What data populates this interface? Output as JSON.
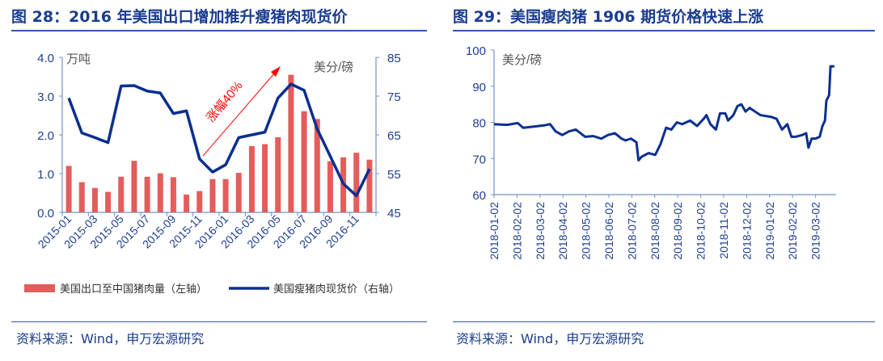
{
  "left": {
    "title": "图 28：2016 年美国出口增加推升瘦猪肉现货价",
    "source": "资料来源：Wind，申万宏源研究"
  },
  "right": {
    "title": "图 29：美国瘦肉猪 1906 期货价格快速上涨",
    "source": "资料来源：Wind，申万宏源研究"
  },
  "colors": {
    "bar": "#e35d5b",
    "line": "#0a2f8f",
    "axis": "#6f93c9",
    "tick_text": "#1f3f8f",
    "arrow": "#ff0000"
  },
  "chart_data": [
    {
      "type": "bar+line",
      "categories": [
        "2015-01",
        "2015-02",
        "2015-03",
        "2015-04",
        "2015-05",
        "2015-06",
        "2015-07",
        "2015-08",
        "2015-09",
        "2015-10",
        "2015-11",
        "2015-12",
        "2016-01",
        "2016-02",
        "2016-03",
        "2016-04",
        "2016-05",
        "2016-06",
        "2016-07",
        "2016-08",
        "2016-09",
        "2016-10",
        "2016-11",
        "2016-12"
      ],
      "x_tick_labels": [
        "2015-01",
        "2015-03",
        "2015-05",
        "2015-07",
        "2015-09",
        "2015-11",
        "2016-01",
        "2016-03",
        "2016-05",
        "2016-07",
        "2016-09",
        "2016-11"
      ],
      "series": [
        {
          "name": "美国出口至中国猪肉量（左轴）",
          "axis": "left",
          "type": "bar",
          "values": [
            1.2,
            0.78,
            0.63,
            0.53,
            0.92,
            1.33,
            0.92,
            1.01,
            0.91,
            0.46,
            0.55,
            0.86,
            0.86,
            1.02,
            1.71,
            1.76,
            1.94,
            3.55,
            2.61,
            2.41,
            1.32,
            1.42,
            1.54,
            1.36
          ]
        },
        {
          "name": "美国瘦猪肉现货价（右轴）",
          "axis": "right",
          "type": "line",
          "values": [
            74.5,
            65.5,
            64.3,
            63.0,
            77.6,
            77.7,
            76.3,
            75.8,
            70.5,
            71.2,
            58.8,
            55.4,
            57.3,
            64.3,
            65.0,
            65.7,
            74.5,
            78.1,
            76.5,
            66.5,
            59.5,
            52.4,
            49.3,
            56.2
          ]
        }
      ],
      "y_left": {
        "label": "万吨",
        "ylim": [
          0,
          4
        ],
        "ticks": [
          "0.0",
          "1.0",
          "2.0",
          "3.0",
          "4.0"
        ]
      },
      "y_right": {
        "label": "美分/磅",
        "ylim": [
          45,
          85
        ],
        "ticks": [
          "45",
          "55",
          "65",
          "75",
          "85"
        ]
      },
      "annotation": "涨幅40%",
      "legend_position": "bottom"
    },
    {
      "type": "line",
      "series_name": "美国瘦肉猪1906期货价格",
      "x_unit": "months since 2018-01-02",
      "x": [
        0,
        0.56,
        1.03,
        1.27,
        1.95,
        2.21,
        2.44,
        2.68,
        2.97,
        3.26,
        3.56,
        3.97,
        4.32,
        4.67,
        4.96,
        5.26,
        5.55,
        5.73,
        5.96,
        6.2,
        6.29,
        6.43,
        6.73,
        7.02,
        7.25,
        7.49,
        7.72,
        7.96,
        8.19,
        8.54,
        8.84,
        9.13,
        9.25,
        9.42,
        9.66,
        9.84,
        10.07,
        10.19,
        10.42,
        10.6,
        10.77,
        10.95,
        11.13,
        11.36,
        11.6,
        12.07,
        12.3,
        12.54,
        12.77,
        12.95,
        13.12,
        13.42,
        13.59,
        13.69,
        13.83,
        14.0,
        14.18,
        14.3,
        14.41,
        14.47,
        14.59,
        14.65,
        14.82
      ],
      "y": [
        79.5,
        79.3,
        79.8,
        78.5,
        79,
        79.2,
        79.5,
        77.5,
        76.5,
        77.5,
        78,
        76,
        76.2,
        75.5,
        76.5,
        77,
        75.5,
        75,
        75.5,
        74.5,
        69.5,
        70.5,
        71.5,
        71,
        74,
        78.5,
        78,
        80,
        79.5,
        80.5,
        79,
        81,
        82,
        79.5,
        78,
        82.5,
        82.5,
        80.5,
        82,
        84.5,
        85,
        83,
        84,
        83,
        82,
        81.5,
        81,
        78,
        79.5,
        76,
        76,
        76.5,
        77,
        73,
        75.5,
        75.5,
        76,
        79,
        80.5,
        86,
        87.5,
        95.5,
        95.5
      ],
      "x_tick_labels": [
        "2018-01-02",
        "2018-02-02",
        "2018-03-02",
        "2018-04-02",
        "2018-05-02",
        "2018-06-02",
        "2018-07-02",
        "2018-08-02",
        "2018-09-02",
        "2018-10-02",
        "2018-11-02",
        "2018-12-02",
        "2019-01-02",
        "2019-02-02",
        "2019-03-02"
      ],
      "ylabel": "美分/磅",
      "ylim": [
        60,
        100
      ],
      "y_ticks": [
        "60",
        "70",
        "80",
        "90",
        "100"
      ]
    }
  ]
}
